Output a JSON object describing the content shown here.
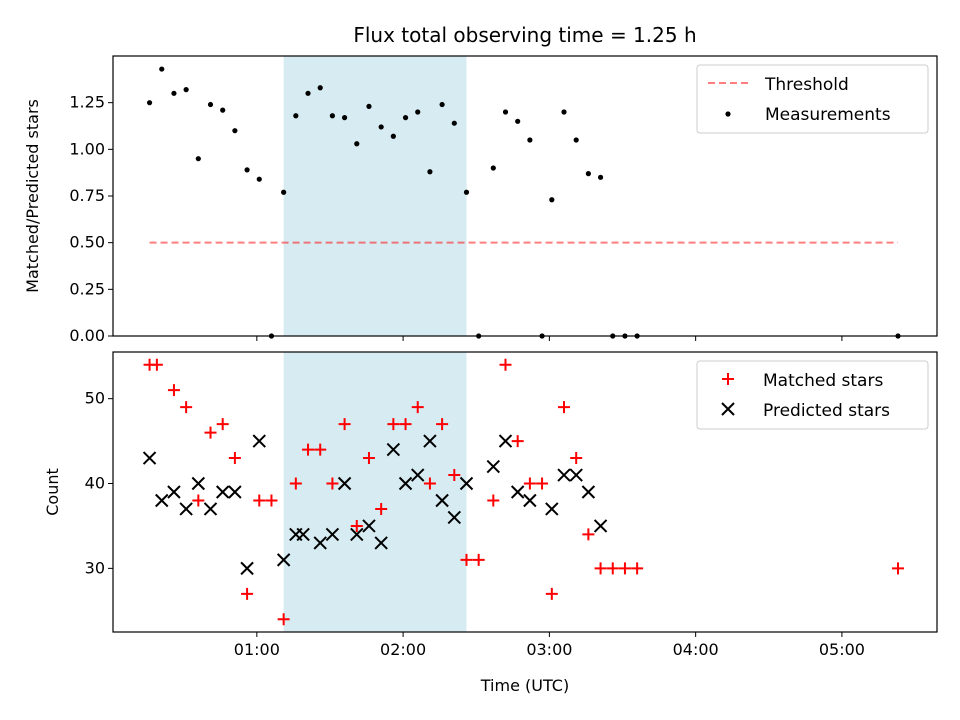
{
  "title": "Flux total observing time = 1.25 h",
  "chart_data": [
    {
      "type": "scatter",
      "ylabel": "Matched/Predicted stars",
      "xlabel": "",
      "xlim": [
        "00:01",
        "05:39"
      ],
      "ylim": [
        0,
        1.5
      ],
      "yticks": [
        "0.00",
        "0.25",
        "0.50",
        "0.75",
        "1.00",
        "1.25"
      ],
      "yticks_values": [
        0,
        0.25,
        0.5,
        0.75,
        1.0,
        1.25
      ],
      "shaded_region": [
        "01:11",
        "02:26"
      ],
      "threshold": {
        "name": "Threshold",
        "y": 0.5,
        "x_range": [
          "00:16",
          "05:23"
        ]
      },
      "series": [
        {
          "name": "Measurements",
          "x": [
            "00:16",
            "00:21",
            "00:26",
            "00:31",
            "00:36",
            "00:41",
            "00:46",
            "00:51",
            "00:56",
            "01:01",
            "01:06",
            "01:11",
            "01:16",
            "01:21",
            "01:26",
            "01:31",
            "01:36",
            "01:41",
            "01:46",
            "01:51",
            "01:56",
            "02:01",
            "02:06",
            "02:11",
            "02:16",
            "02:21",
            "02:26",
            "02:31",
            "02:37",
            "02:42",
            "02:47",
            "02:52",
            "02:57",
            "03:01",
            "03:06",
            "03:11",
            "03:16",
            "03:21",
            "03:26",
            "03:31",
            "03:36",
            "05:23"
          ],
          "values": [
            1.25,
            1.43,
            1.3,
            1.32,
            0.95,
            1.24,
            1.21,
            1.1,
            0.89,
            0.84,
            0.0,
            0.77,
            1.18,
            1.3,
            1.33,
            1.18,
            1.17,
            1.03,
            1.23,
            1.12,
            1.07,
            1.17,
            1.2,
            0.88,
            1.24,
            1.14,
            0.77,
            0.0,
            0.9,
            1.2,
            1.15,
            1.05,
            0.0,
            0.73,
            1.2,
            1.05,
            0.87,
            0.85,
            0.0,
            0.0,
            0.0,
            0.0
          ]
        }
      ]
    },
    {
      "type": "scatter",
      "ylabel": "Count",
      "xlabel": "Time (UTC)",
      "xlim": [
        "00:01",
        "05:39"
      ],
      "ylim": [
        22.5,
        55.5
      ],
      "yticks": [
        "30",
        "40",
        "50"
      ],
      "yticks_values": [
        30,
        40,
        50
      ],
      "xticks": [
        "01:00",
        "02:00",
        "03:00",
        "04:00",
        "05:00"
      ],
      "shaded_region": [
        "01:11",
        "02:26"
      ],
      "series": [
        {
          "name": "Matched stars",
          "marker": "plus",
          "color": "#ff0000",
          "x": [
            "00:16",
            "00:19",
            "00:26",
            "00:31",
            "00:36",
            "00:41",
            "00:46",
            "00:51",
            "00:56",
            "01:01",
            "01:06",
            "01:11",
            "01:16",
            "01:21",
            "01:26",
            "01:31",
            "01:36",
            "01:41",
            "01:46",
            "01:51",
            "01:56",
            "02:01",
            "02:06",
            "02:11",
            "02:16",
            "02:21",
            "02:26",
            "02:31",
            "02:37",
            "02:42",
            "02:47",
            "02:52",
            "02:57",
            "03:01",
            "03:06",
            "03:11",
            "03:16",
            "03:21",
            "03:26",
            "03:31",
            "03:36",
            "05:23"
          ],
          "values": [
            54,
            54,
            51,
            49,
            38,
            46,
            47,
            43,
            27,
            38,
            38,
            24,
            40,
            44,
            44,
            40,
            47,
            35,
            43,
            37,
            47,
            47,
            49,
            40,
            47,
            41,
            31,
            31,
            38,
            54,
            45,
            40,
            40,
            27,
            49,
            43,
            34,
            30,
            30,
            30,
            30,
            30
          ]
        },
        {
          "name": "Predicted stars",
          "marker": "x",
          "color": "#000000",
          "x": [
            "00:16",
            "00:21",
            "00:26",
            "00:31",
            "00:36",
            "00:41",
            "00:46",
            "00:51",
            "00:56",
            "01:01",
            "01:11",
            "01:16",
            "01:19",
            "01:26",
            "01:31",
            "01:36",
            "01:41",
            "01:46",
            "01:51",
            "01:56",
            "02:01",
            "02:06",
            "02:11",
            "02:16",
            "02:21",
            "02:26",
            "02:37",
            "02:42",
            "02:47",
            "02:52",
            "03:01",
            "03:06",
            "03:11",
            "03:16",
            "03:21"
          ],
          "values": [
            43,
            38,
            39,
            37,
            40,
            37,
            39,
            39,
            30,
            45,
            31,
            34,
            34,
            33,
            34,
            40,
            34,
            35,
            33,
            44,
            40,
            41,
            45,
            38,
            36,
            40,
            42,
            45,
            39,
            38,
            37,
            41,
            41,
            39,
            35
          ]
        }
      ]
    }
  ]
}
